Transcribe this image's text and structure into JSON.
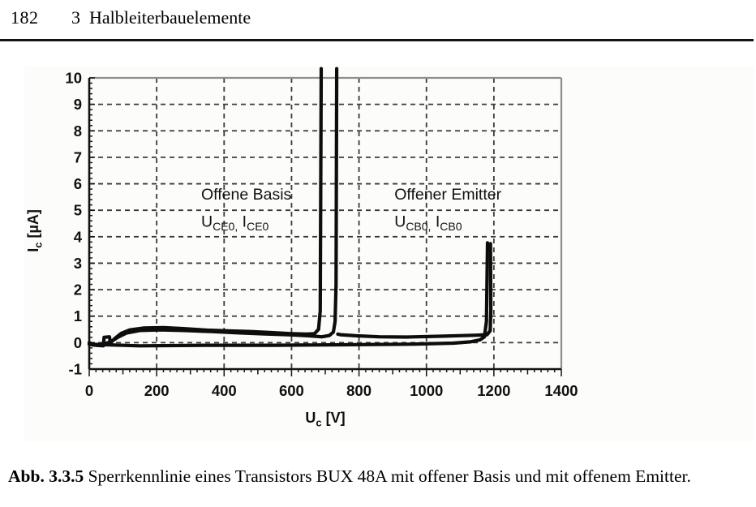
{
  "page": {
    "number": "182",
    "chapter_number": "3",
    "chapter_title": "Halbleiterbauelemente"
  },
  "caption": {
    "label": "Abb. 3.3.5",
    "text": "Sperrkennlinie eines Transistors BUX 48A mit offener Basis und mit offenem Emitter."
  },
  "colors": {
    "curve": "#0d0d0d",
    "grid": "#3a3a3a",
    "frame": "#8e8e8e",
    "axis": "#141414",
    "text": "#111111",
    "figure_bg": "#fcfcfa"
  },
  "chart_data": {
    "type": "line",
    "title": "",
    "xlabel_segments": [
      {
        "t": "U"
      },
      {
        "t": "c",
        "sub": true
      },
      {
        "t": " [V]"
      }
    ],
    "ylabel_segments": [
      {
        "t": "I"
      },
      {
        "t": "c",
        "sub": true
      },
      {
        "t": " [µA]"
      }
    ],
    "xlim": [
      0,
      1400
    ],
    "ylim": [
      -1,
      10
    ],
    "x_major_step": 200,
    "x_minor_step": 20,
    "y_major_step": 1,
    "y_minor_step": 0.2,
    "grid": "dashed",
    "legend_position": "none",
    "x_tick_labels": [
      "0",
      "200",
      "400",
      "600",
      "800",
      "1000",
      "1200",
      "1400"
    ],
    "y_tick_labels": [
      "-1",
      "0",
      "1",
      "2",
      "3",
      "4",
      "5",
      "6",
      "7",
      "8",
      "9",
      "10"
    ],
    "series": [
      {
        "name": "offene-basis-up-sweep",
        "points": [
          [
            0,
            0
          ],
          [
            20,
            -0.1
          ],
          [
            42,
            -0.12
          ],
          [
            44,
            0.2
          ],
          [
            60,
            0.22
          ],
          [
            63,
            -0.02
          ],
          [
            75,
            0.15
          ],
          [
            95,
            0.35
          ],
          [
            120,
            0.48
          ],
          [
            160,
            0.55
          ],
          [
            220,
            0.57
          ],
          [
            280,
            0.53
          ],
          [
            350,
            0.47
          ],
          [
            420,
            0.44
          ],
          [
            480,
            0.42
          ],
          [
            540,
            0.38
          ],
          [
            600,
            0.34
          ],
          [
            645,
            0.32
          ],
          [
            668,
            0.34
          ],
          [
            680,
            0.5
          ],
          [
            685,
            1.2
          ],
          [
            688,
            10.35
          ]
        ]
      },
      {
        "name": "offene-basis-down-sweep",
        "points": [
          [
            734,
            10.35
          ],
          [
            732,
            2.2
          ],
          [
            729,
            0.8
          ],
          [
            724,
            0.4
          ],
          [
            712,
            0.27
          ],
          [
            690,
            0.22
          ],
          [
            650,
            0.26
          ],
          [
            590,
            0.3
          ],
          [
            520,
            0.33
          ],
          [
            440,
            0.37
          ],
          [
            360,
            0.42
          ],
          [
            280,
            0.46
          ],
          [
            210,
            0.48
          ],
          [
            150,
            0.46
          ],
          [
            110,
            0.36
          ],
          [
            85,
            0.2
          ],
          [
            62,
            0.02
          ],
          [
            40,
            -0.06
          ],
          [
            15,
            -0.1
          ],
          [
            0,
            -0.06
          ]
        ]
      },
      {
        "name": "offener-emitter-up-sweep",
        "points": [
          [
            0,
            -0.06
          ],
          [
            150,
            -0.12
          ],
          [
            350,
            -0.1
          ],
          [
            550,
            -0.1
          ],
          [
            750,
            -0.08
          ],
          [
            950,
            -0.06
          ],
          [
            1080,
            -0.02
          ],
          [
            1130,
            0.03
          ],
          [
            1158,
            0.1
          ],
          [
            1172,
            0.22
          ],
          [
            1178,
            0.8
          ],
          [
            1181,
            3.77
          ]
        ]
      },
      {
        "name": "offener-emitter-down-sweep",
        "points": [
          [
            1190,
            3.74
          ],
          [
            1191,
            1.2
          ],
          [
            1189,
            0.45
          ],
          [
            1180,
            0.3
          ],
          [
            1150,
            0.28
          ],
          [
            1040,
            0.24
          ],
          [
            940,
            0.21
          ],
          [
            860,
            0.22
          ],
          [
            790,
            0.26
          ],
          [
            745,
            0.3
          ],
          [
            737,
            0.32
          ]
        ]
      }
    ],
    "annotations": [
      {
        "name": "open-base-label",
        "x": 332,
        "y": 5.4,
        "formula_y": 4.38,
        "title": "Offene Basis",
        "formula": [
          {
            "t": "U"
          },
          {
            "t": "CE0,",
            "sub": true
          },
          {
            "t": " I"
          },
          {
            "t": "CE0",
            "sub": true
          }
        ]
      },
      {
        "name": "open-emitter-label",
        "x": 905,
        "y": 5.4,
        "formula_y": 4.38,
        "title": "Offener Emitter",
        "formula": [
          {
            "t": "U"
          },
          {
            "t": "CB0,",
            "sub": true
          },
          {
            "t": " I"
          },
          {
            "t": "CB0",
            "sub": true
          }
        ]
      }
    ]
  }
}
